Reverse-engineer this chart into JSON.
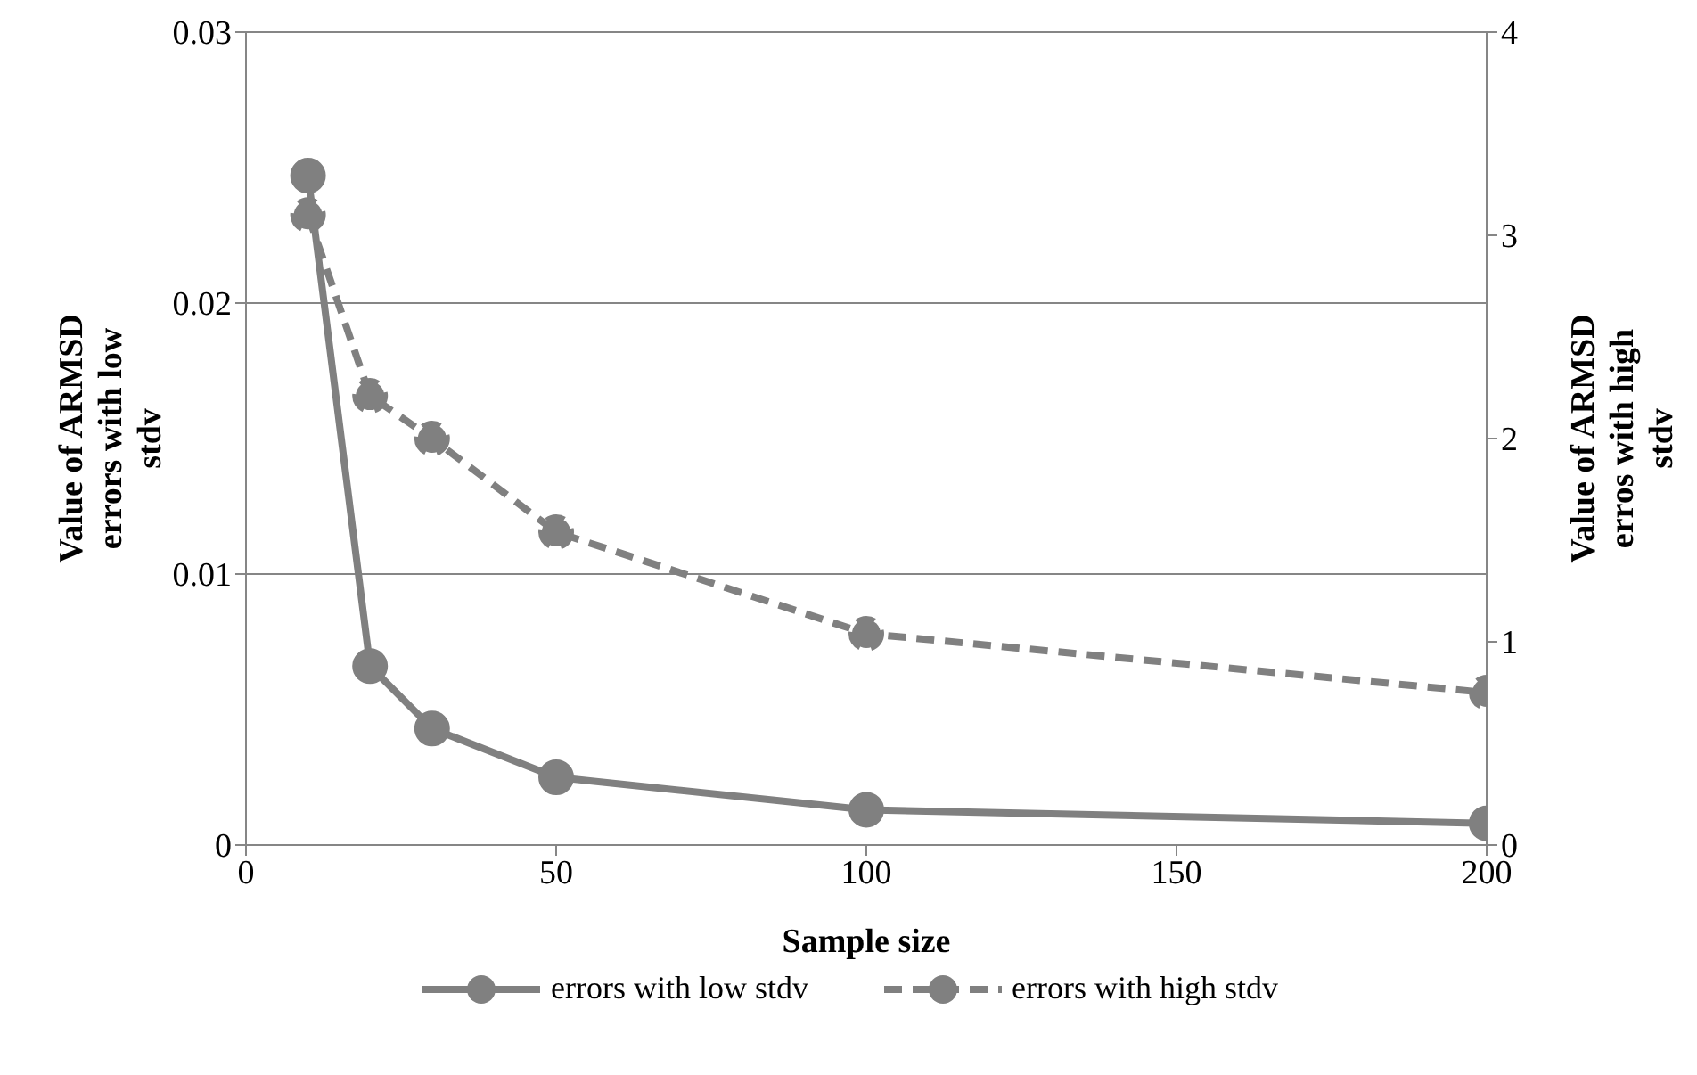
{
  "chart_data": {
    "type": "line",
    "xlabel": "Sample size",
    "ylabel": "Value of ARMSD errors with low stdv",
    "y2label": "Value of ARMSD erros with high stdv",
    "x": [
      10,
      20,
      30,
      50,
      100,
      200
    ],
    "series": [
      {
        "name": "errors with low stdv",
        "color": "#808080",
        "values": [
          0.0247,
          0.0066,
          0.0043,
          0.0025,
          0.0013,
          0.0008
        ],
        "line_style": "solid"
      },
      {
        "name": "errors with high stdv",
        "color": "#808080",
        "values": [
          3.1,
          2.21,
          2.0,
          1.54,
          1.04,
          0.75
        ],
        "axis": "y2",
        "line_style": "dashed"
      }
    ],
    "xlim": [
      0,
      200
    ],
    "xticks": [
      0,
      50,
      100,
      150,
      200
    ],
    "ylim": [
      0,
      0.03
    ],
    "yticks": [
      0,
      0.01,
      0.02,
      0.03
    ],
    "y2lim": [
      0,
      4
    ],
    "y2ticks": [
      0,
      1,
      2,
      3,
      4
    ],
    "grid": "y",
    "legend": "bottom",
    "marker": "circle"
  }
}
